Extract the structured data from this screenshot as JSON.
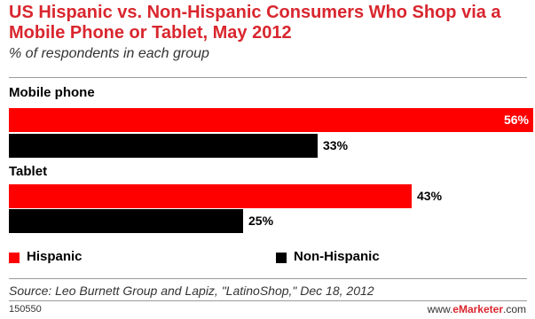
{
  "chart_data": {
    "type": "bar",
    "orientation": "horizontal",
    "title": "US Hispanic vs. Non-Hispanic Consumers Who Shop via a Mobile Phone or Tablet, May 2012",
    "subtitle": "% of respondents in each group",
    "categories": [
      "Mobile phone",
      "Tablet"
    ],
    "series": [
      {
        "name": "Hispanic",
        "color": "#ff0000",
        "values": [
          56,
          43
        ],
        "labels": [
          "56%",
          "43%"
        ]
      },
      {
        "name": "Non-Hispanic",
        "color": "#000000",
        "values": [
          33,
          25
        ],
        "labels": [
          "33%",
          "25%"
        ]
      }
    ],
    "xlim": [
      0,
      56
    ],
    "grid": false,
    "legend_position": "bottom"
  },
  "source": "Source: Leo Burnett Group and Lapiz, \"LatinoShop,\" Dec 18, 2012",
  "footer": {
    "chart_id": "150550",
    "brand_prefix": "www.",
    "brand_name": "eMarketer",
    "brand_suffix": ".com"
  }
}
